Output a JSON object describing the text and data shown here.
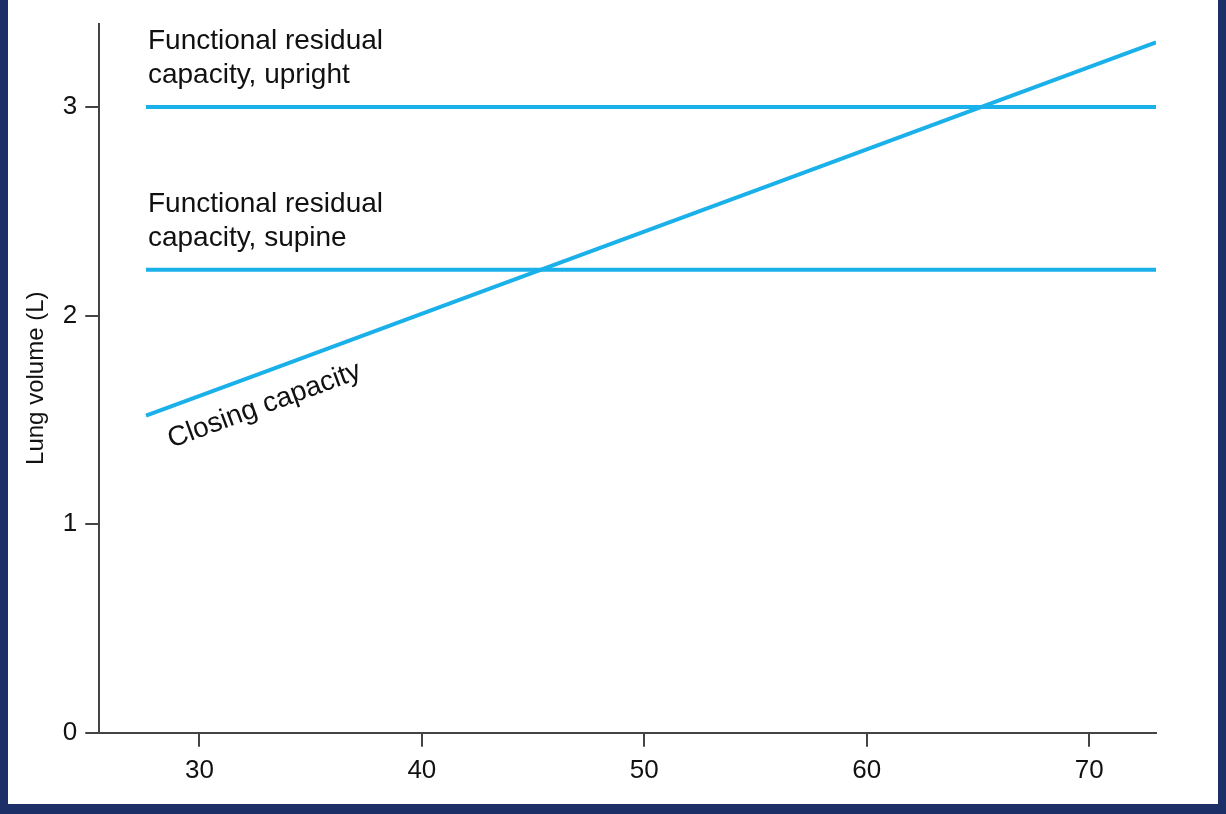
{
  "chart_data": {
    "type": "line",
    "ylabel": "Lung volume (L)",
    "xlim": [
      25.5,
      73
    ],
    "ylim": [
      0,
      3.4
    ],
    "xticks": [
      30,
      40,
      50,
      60,
      70
    ],
    "yticks": [
      0,
      1,
      2,
      3
    ],
    "grid": false,
    "legend": false,
    "marker": "none",
    "line_style": "solid",
    "x": [
      27.6,
      73
    ],
    "series": [
      {
        "name": "Functional residual capacity, upright",
        "color": "#1ab0ea",
        "values": [
          3.0,
          3.0
        ]
      },
      {
        "name": "Functional residual capacity, supine",
        "color": "#1ab0ea",
        "values": [
          2.22,
          2.22
        ]
      },
      {
        "name": "Closing capacity",
        "color": "#1ab0ea",
        "values": [
          1.52,
          3.31
        ]
      }
    ]
  }
}
